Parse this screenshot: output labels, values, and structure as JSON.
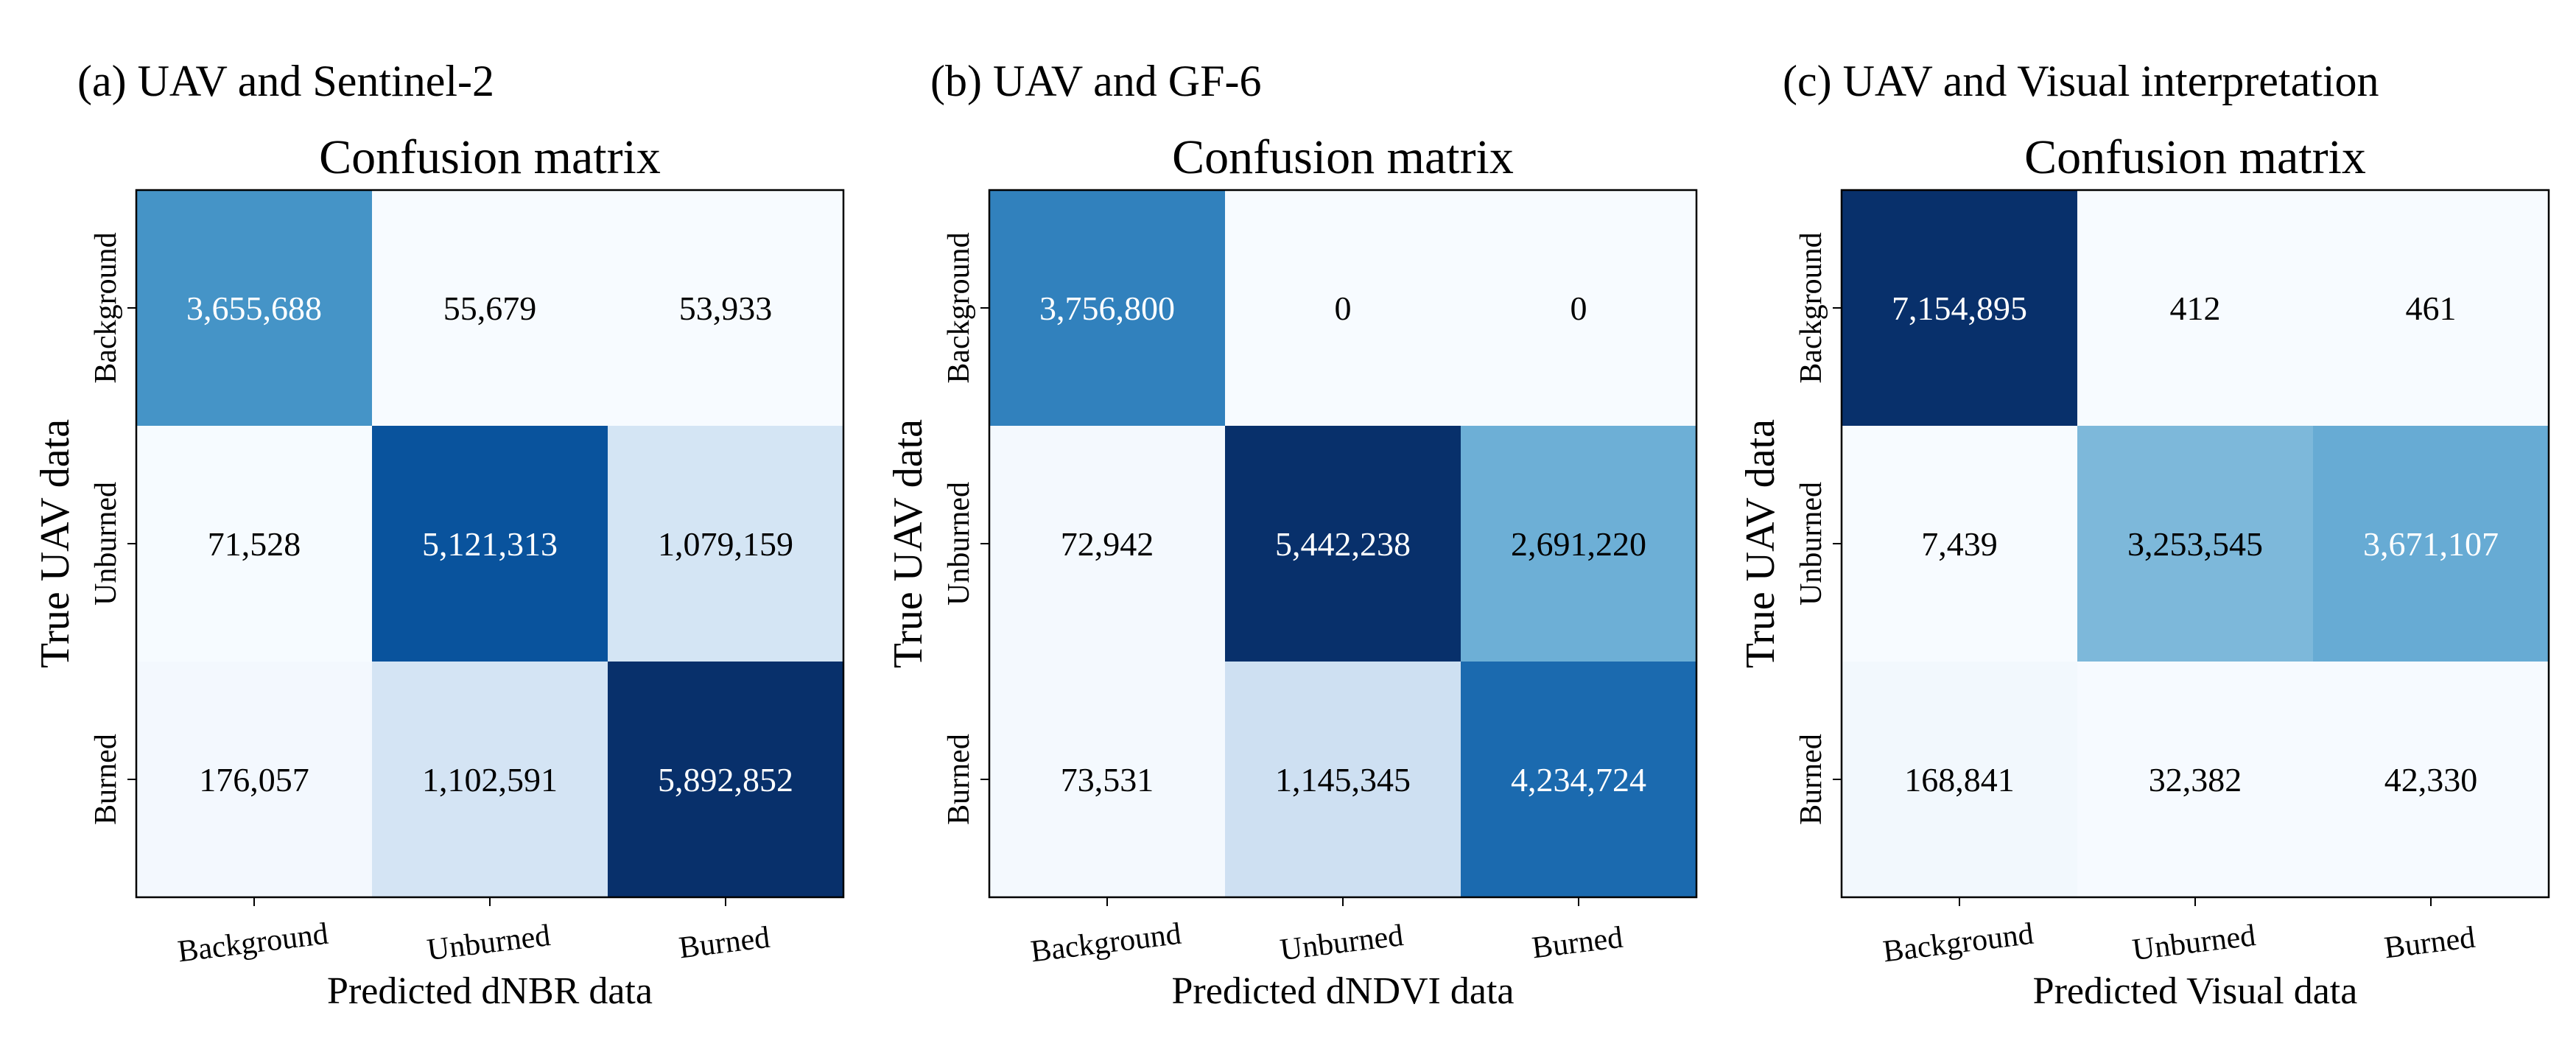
{
  "chart_data": [
    {
      "type": "heatmap",
      "panel_label": "(a) UAV and Sentinel-2",
      "title": "Confusion matrix",
      "xlabel": "Predicted dNBR data",
      "ylabel": "True UAV data",
      "x_ticks": [
        "Background",
        "Unburned",
        "Burned"
      ],
      "y_ticks": [
        "Background",
        "Unburned",
        "Burned"
      ],
      "values": [
        [
          3655688,
          55679,
          53933
        ],
        [
          71528,
          5121313,
          1079159
        ],
        [
          176057,
          1102591,
          5892852
        ]
      ],
      "labels": [
        [
          "3,655,688",
          "55,679",
          "53,933"
        ],
        [
          "71,528",
          "5,121,313",
          "1,079,159"
        ],
        [
          "176,057",
          "1,102,591",
          "5,892,852"
        ]
      ]
    },
    {
      "type": "heatmap",
      "panel_label": "(b) UAV and GF-6",
      "title": "Confusion matrix",
      "xlabel": "Predicted dNDVI data",
      "ylabel": "True UAV data",
      "x_ticks": [
        "Background",
        "Unburned",
        "Burned"
      ],
      "y_ticks": [
        "Background",
        "Unburned",
        "Burned"
      ],
      "values": [
        [
          3756800,
          0,
          0
        ],
        [
          72942,
          5442238,
          2691220
        ],
        [
          73531,
          1145345,
          4234724
        ]
      ],
      "labels": [
        [
          "3,756,800",
          "0",
          "0"
        ],
        [
          "72,942",
          "5,442,238",
          "2,691,220"
        ],
        [
          "73,531",
          "1,145,345",
          "4,234,724"
        ]
      ]
    },
    {
      "type": "heatmap",
      "panel_label": "(c) UAV and Visual interpretation",
      "title": "Confusion matrix",
      "xlabel": "Predicted Visual data",
      "ylabel": "True UAV data",
      "x_ticks": [
        "Background",
        "Unburned",
        "Burned"
      ],
      "y_ticks": [
        "Background",
        "Unburned",
        "Burned"
      ],
      "values": [
        [
          7154895,
          412,
          461
        ],
        [
          7439,
          3253545,
          3671107
        ],
        [
          168841,
          32382,
          42330
        ]
      ],
      "labels": [
        [
          "7,154,895",
          "412",
          "461"
        ],
        [
          "7,439",
          "3,253,545",
          "3,671,107"
        ],
        [
          "168,841",
          "32,382",
          "42,330"
        ]
      ]
    }
  ],
  "colors": {
    "colormap_stops": [
      "#f7fbff",
      "#deebf7",
      "#c6dbef",
      "#9ecae1",
      "#6baed6",
      "#4292c6",
      "#2171b5",
      "#08519c",
      "#08306b"
    ],
    "text_dark": "#000000",
    "text_light": "#ffffff"
  }
}
